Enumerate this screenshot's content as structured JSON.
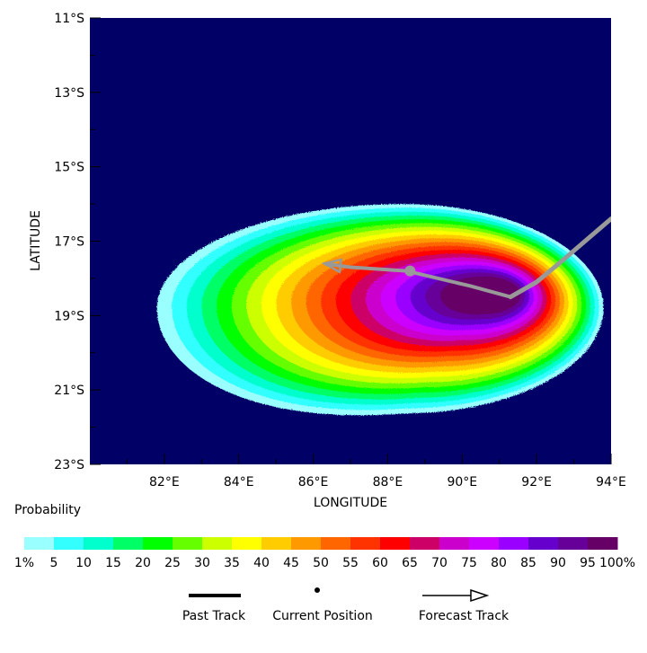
{
  "map": {
    "x_axis_label": "LONGITUDE",
    "y_axis_label": "LATITUDE",
    "lon_ticks": [
      "82°E",
      "84°E",
      "86°E",
      "88°E",
      "90°E",
      "92°E",
      "94°E"
    ],
    "lat_ticks": [
      "11°S",
      "13°S",
      "15°S",
      "17°S",
      "19°S",
      "21°S",
      "23°S"
    ],
    "lon_range": [
      80,
      94
    ],
    "lat_range": [
      -23,
      -11
    ],
    "background_color": "#000066",
    "track_color": "#999999"
  },
  "probability": {
    "title": "Probability",
    "colors": [
      "#99ffff",
      "#33ffff",
      "#00ffcc",
      "#00ff66",
      "#00ff00",
      "#66ff00",
      "#ccff00",
      "#ffff00",
      "#ffcc00",
      "#ff9900",
      "#ff6600",
      "#ff3300",
      "#ff0000",
      "#cc0066",
      "#cc00cc",
      "#cc00ff",
      "#9900ff",
      "#6600cc",
      "#660099",
      "#660066"
    ],
    "tick_labels": [
      "1%",
      "5",
      "10",
      "15",
      "20",
      "25",
      "30",
      "35",
      "40",
      "45",
      "50",
      "55",
      "60",
      "65",
      "70",
      "75",
      "80",
      "85",
      "90",
      "95",
      "100%"
    ]
  },
  "track": {
    "past": [
      [
        94,
        -16.4
      ],
      [
        93.3,
        -17.0
      ],
      [
        92.6,
        -17.6
      ],
      [
        92.0,
        -18.1
      ],
      [
        91.3,
        -18.5
      ]
    ],
    "forecast": [
      [
        91.3,
        -18.5
      ],
      [
        90.2,
        -18.2
      ],
      [
        88.5,
        -17.8
      ],
      [
        87.0,
        -17.7
      ],
      [
        86.3,
        -17.6
      ]
    ],
    "current_position": [
      88.6,
      -17.8
    ]
  },
  "legend": {
    "past_track": "Past Track",
    "current_position": "Current Position",
    "forecast_track": "Forecast Track"
  }
}
